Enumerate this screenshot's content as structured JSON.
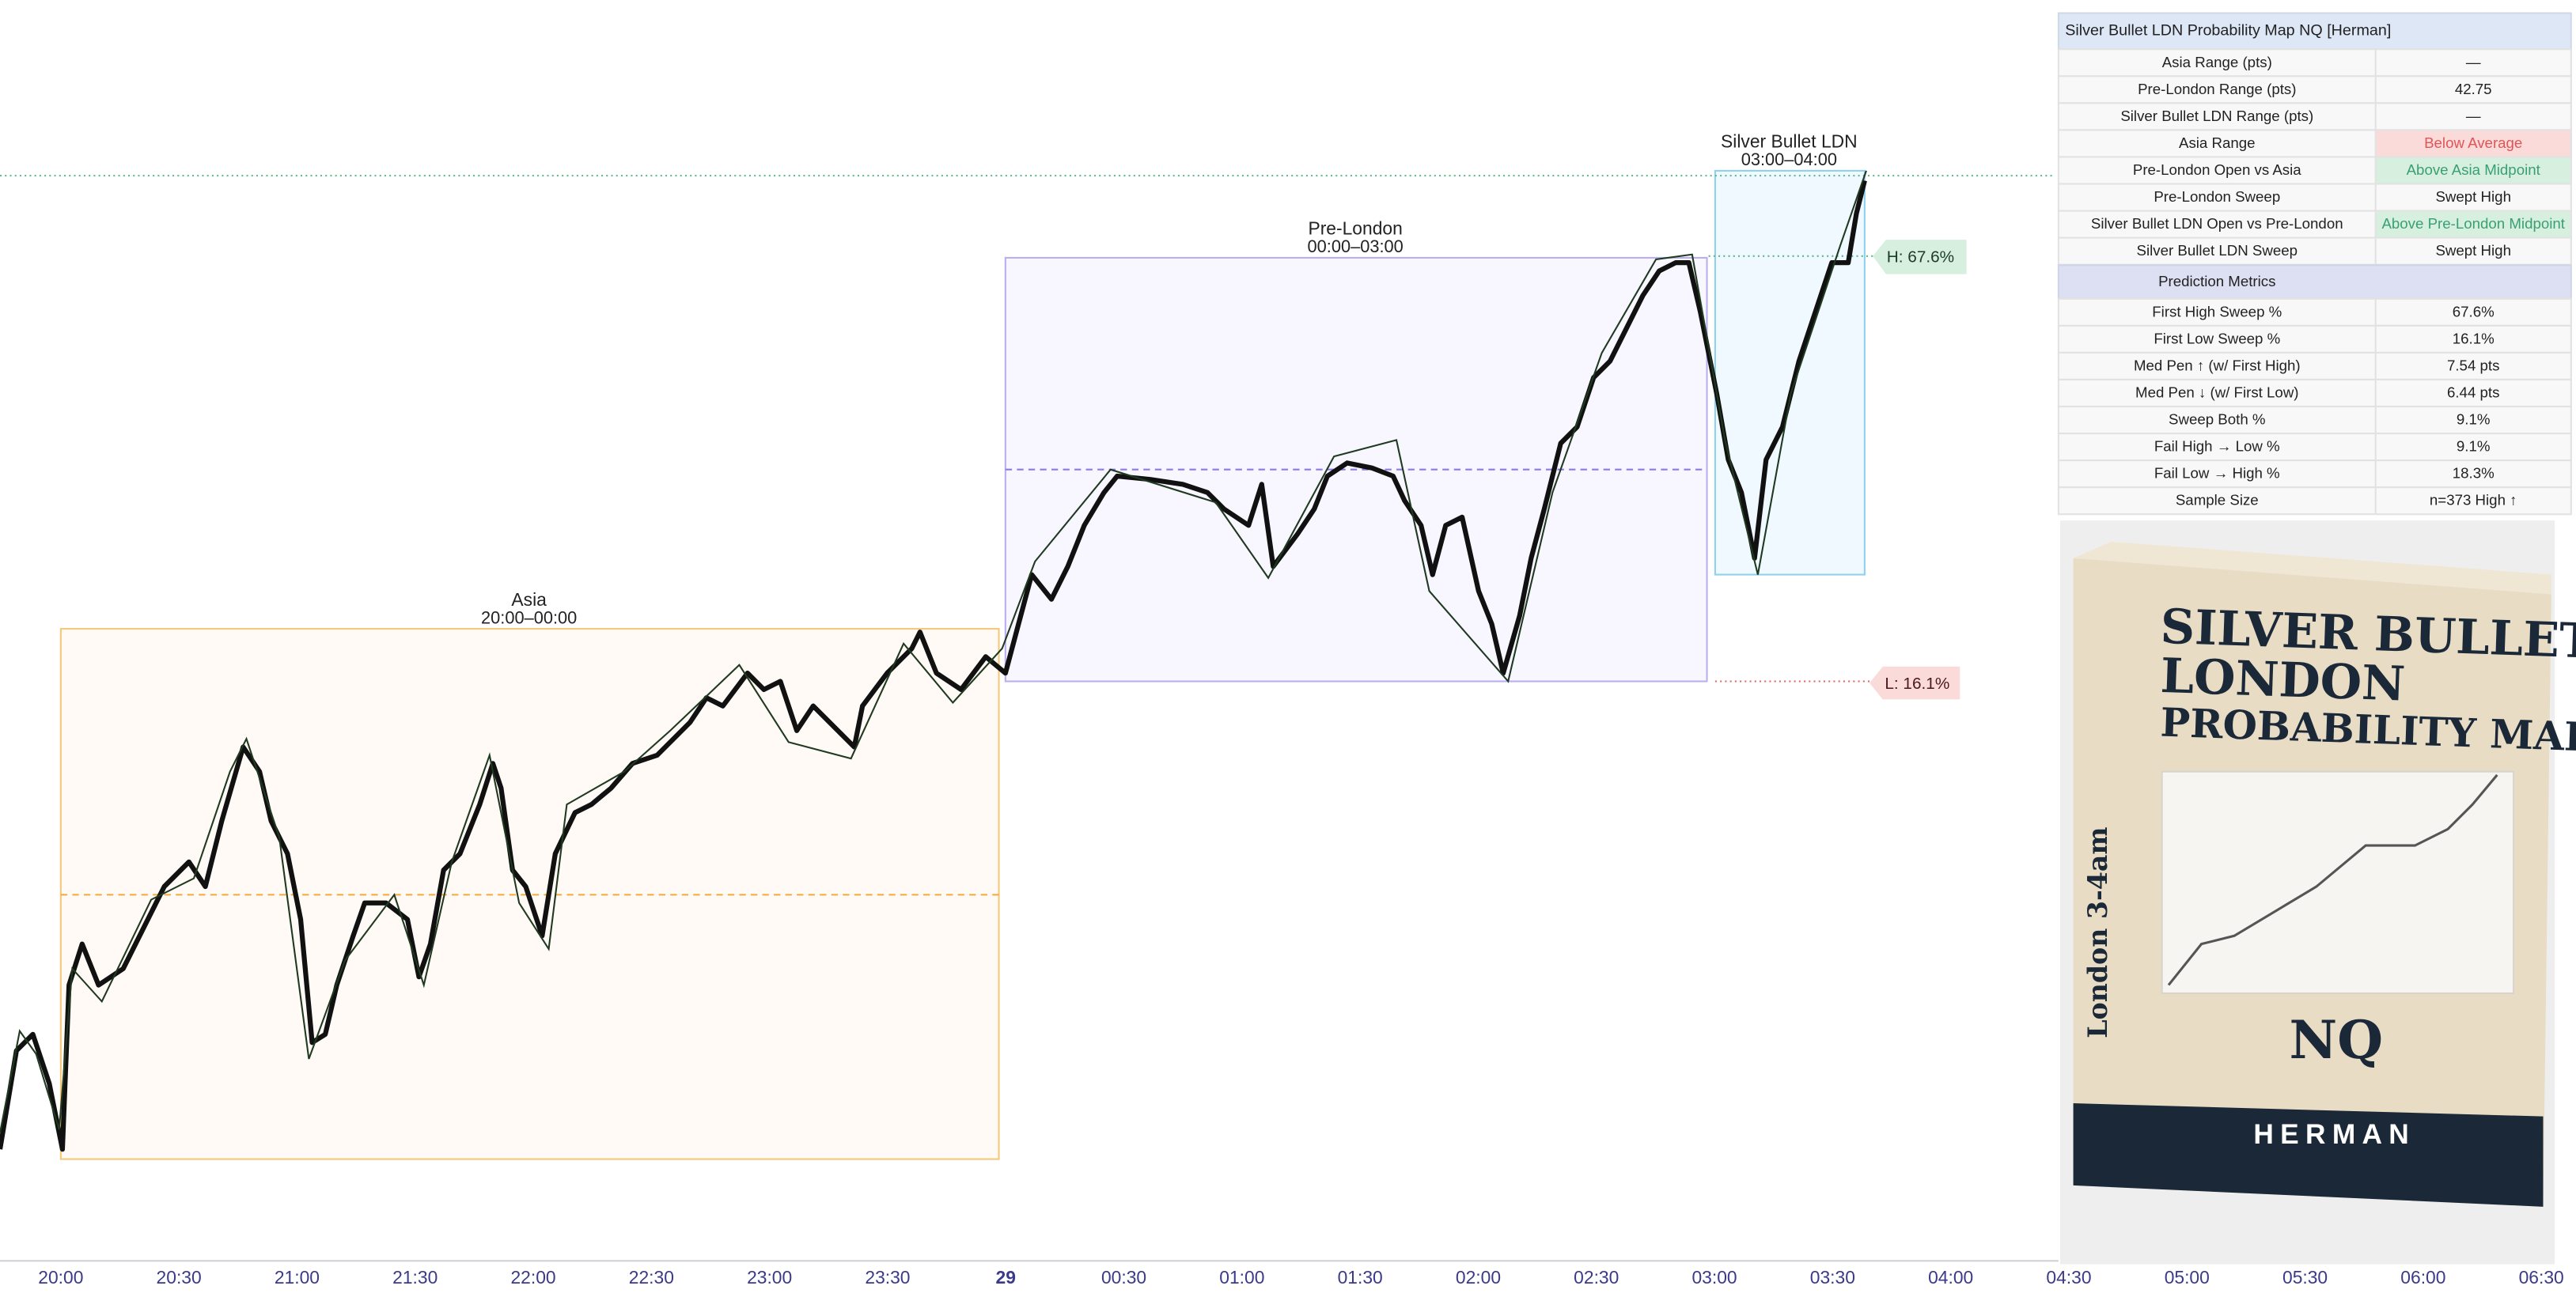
{
  "chart": {
    "sessions": [
      {
        "name": "Asia",
        "time": "20:00–00:00"
      },
      {
        "name": "Pre-London",
        "time": "00:00–03:00"
      },
      {
        "name": "Silver Bullet LDN",
        "time": "03:00–04:00"
      }
    ],
    "tags": {
      "high": "H: 67.6%",
      "low": "L: 16.1%"
    },
    "x_axis": [
      "20:00",
      "20:30",
      "21:00",
      "21:30",
      "22:00",
      "22:30",
      "23:00",
      "23:30",
      "29",
      "00:30",
      "01:00",
      "01:30",
      "02:00",
      "02:30",
      "03:00",
      "03:30",
      "04:00",
      "04:30",
      "05:00",
      "05:30",
      "06:00",
      "06:30"
    ]
  },
  "table": {
    "title": "Silver Bullet LDN Probability Map NQ [Herman]",
    "rows": [
      [
        "Asia Range (pts)",
        "—"
      ],
      [
        "Pre-London Range (pts)",
        "42.75"
      ],
      [
        "Silver Bullet LDN Range (pts)",
        "—"
      ],
      [
        "Asia Range",
        "Below Average"
      ],
      [
        "Pre-London Open vs Asia",
        "Above Asia Midpoint"
      ],
      [
        "Pre-London Sweep",
        "Swept High"
      ],
      [
        "Silver Bullet LDN Open vs Pre-London",
        "Above Pre-London Midpoint"
      ],
      [
        "Silver Bullet LDN Sweep",
        "Swept High"
      ]
    ],
    "section": "Prediction Metrics",
    "metrics": [
      [
        "First High Sweep %",
        "67.6%"
      ],
      [
        "First Low Sweep %",
        "16.1%"
      ],
      [
        "Med Pen ↑ (w/ First High)",
        "7.54 pts"
      ],
      [
        "Med Pen ↓ (w/ First Low)",
        "6.44 pts"
      ],
      [
        "Sweep Both %",
        "9.1%"
      ],
      [
        "Fail High → Low %",
        "9.1%"
      ],
      [
        "Fail Low → High %",
        "18.3%"
      ],
      [
        "Sample Size",
        "n=373 High ↑"
      ]
    ]
  },
  "cover": {
    "title": [
      "SILVER BULLET",
      "LONDON",
      "PROBABILITY MAP"
    ],
    "side": "London 3-4am",
    "symbol": "NQ",
    "author": "HERMAN"
  }
}
